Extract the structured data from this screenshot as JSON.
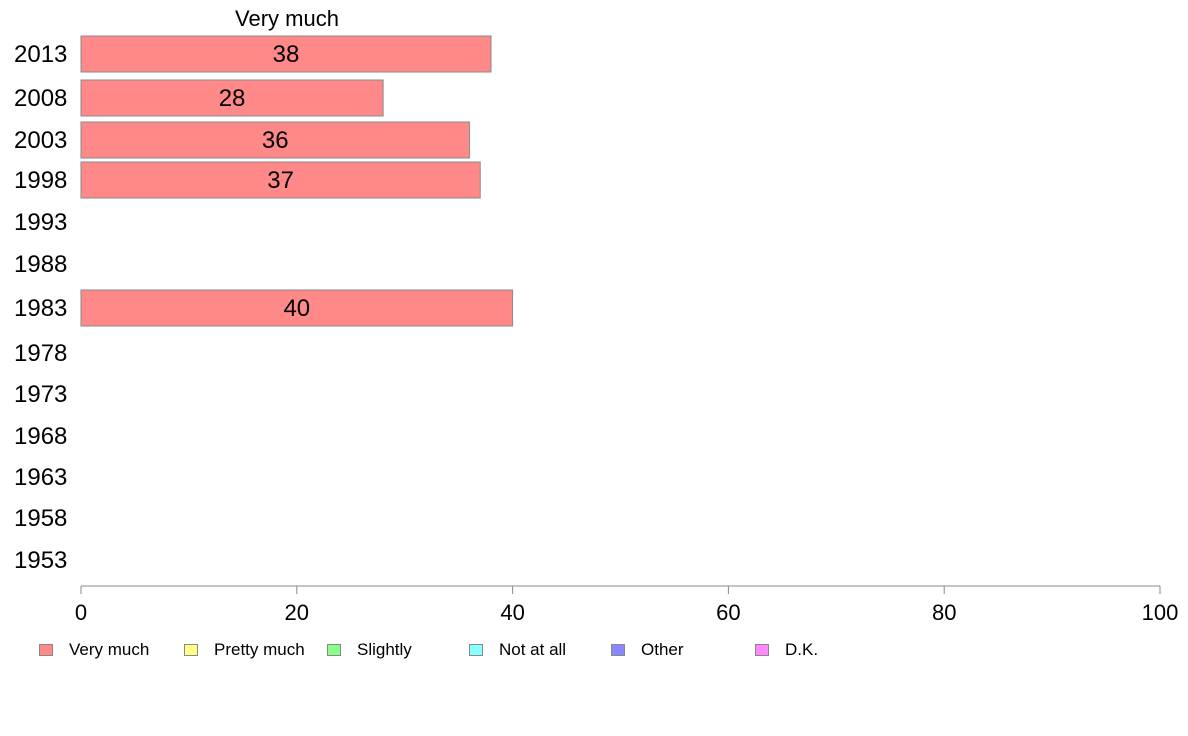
{
  "chart_data": {
    "type": "bar",
    "orientation": "horizontal",
    "series_label": "Very much",
    "categories": [
      "2013",
      "2008",
      "2003",
      "1998",
      "1993",
      "1988",
      "1983",
      "1978",
      "1973",
      "1968",
      "1963",
      "1958",
      "1953"
    ],
    "values": [
      38,
      28,
      36,
      37,
      null,
      null,
      40,
      null,
      null,
      null,
      null,
      null,
      null
    ],
    "bar_labels": [
      "38",
      "28",
      "36",
      "37",
      "",
      "",
      "40",
      "",
      "",
      "",
      "",
      "",
      ""
    ],
    "xlim": [
      0,
      100
    ],
    "xticks": [
      0,
      20,
      40,
      60,
      80,
      100
    ],
    "xtick_labels": [
      "0",
      "20",
      "40",
      "60",
      "80",
      "100"
    ],
    "bar_color": "#ff8888",
    "bar_edge_color": "#8a8a8a",
    "grid": false,
    "legend": {
      "placement": "bottom",
      "items": [
        {
          "label": "Very much",
          "color": "#ff8888"
        },
        {
          "label": "Pretty much",
          "color": "#ffff88"
        },
        {
          "label": "Slightly",
          "color": "#88ff88"
        },
        {
          "label": "Not at all",
          "color": "#88ffff"
        },
        {
          "label": "Other",
          "color": "#8888ff"
        },
        {
          "label": "D.K.",
          "color": "#ff88ff"
        }
      ]
    }
  }
}
